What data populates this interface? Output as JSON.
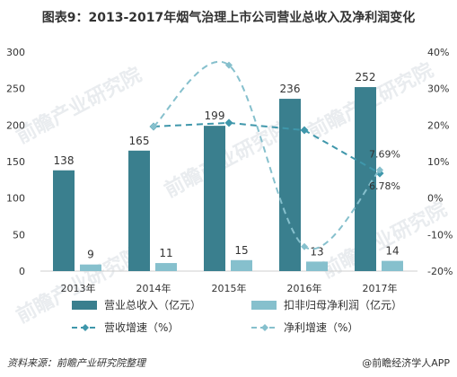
{
  "header": {
    "title": "图表9：2013-2017年烟气治理上市公司营业总收入及净利润变化"
  },
  "footer": {
    "source": "资料来源：前瞻产业研究院整理",
    "brand": "@前瞻经济学人APP"
  },
  "watermark": {
    "text": "前瞻产业研究院"
  },
  "colors": {
    "revenue_bar": "#3a7f8e",
    "profit_bar": "#86c0cd",
    "revenue_growth_line": "#3f97ab",
    "profit_growth_line": "#86c0cd",
    "axis": "#cfcfcf"
  },
  "chart_data": {
    "type": "bar",
    "title": "图表9：2013-2017年烟气治理上市公司营业总收入及净利润变化",
    "categories": [
      "2013年",
      "2014年",
      "2015年",
      "2016年",
      "2017年"
    ],
    "y_left": {
      "min": 0,
      "max": 300,
      "ticks": [
        "0",
        "50",
        "100",
        "150",
        "200",
        "250",
        "300"
      ]
    },
    "y_right": {
      "min": -20,
      "max": 40,
      "ticks": [
        "-20%",
        "-10%",
        "0%",
        "10%",
        "20%",
        "30%",
        "40%"
      ]
    },
    "series": [
      {
        "name": "营业总收入（亿元）",
        "type": "bar",
        "axis": "left",
        "values": [
          138,
          165,
          199,
          236,
          252
        ],
        "labels": [
          "138",
          "165",
          "199",
          "236",
          "252"
        ]
      },
      {
        "name": "扣非归母净利润（亿元）",
        "type": "bar",
        "axis": "left",
        "values": [
          9,
          11,
          15,
          13,
          14
        ],
        "labels": [
          "9",
          "11",
          "15",
          "13",
          "14"
        ]
      },
      {
        "name": "营收增速（%）",
        "type": "line",
        "axis": "right",
        "style": "dashed",
        "values": [
          null,
          19.6,
          20.6,
          18.6,
          6.78
        ],
        "labels": [
          null,
          null,
          null,
          null,
          "6.78%"
        ]
      },
      {
        "name": "净利增速（%）",
        "type": "line",
        "axis": "right",
        "style": "dashed-smooth",
        "values": [
          null,
          19.6,
          36.4,
          -13.3,
          7.69
        ],
        "labels": [
          null,
          null,
          null,
          null,
          "7.69%"
        ]
      }
    ],
    "grid": false,
    "legend": "bottom"
  }
}
